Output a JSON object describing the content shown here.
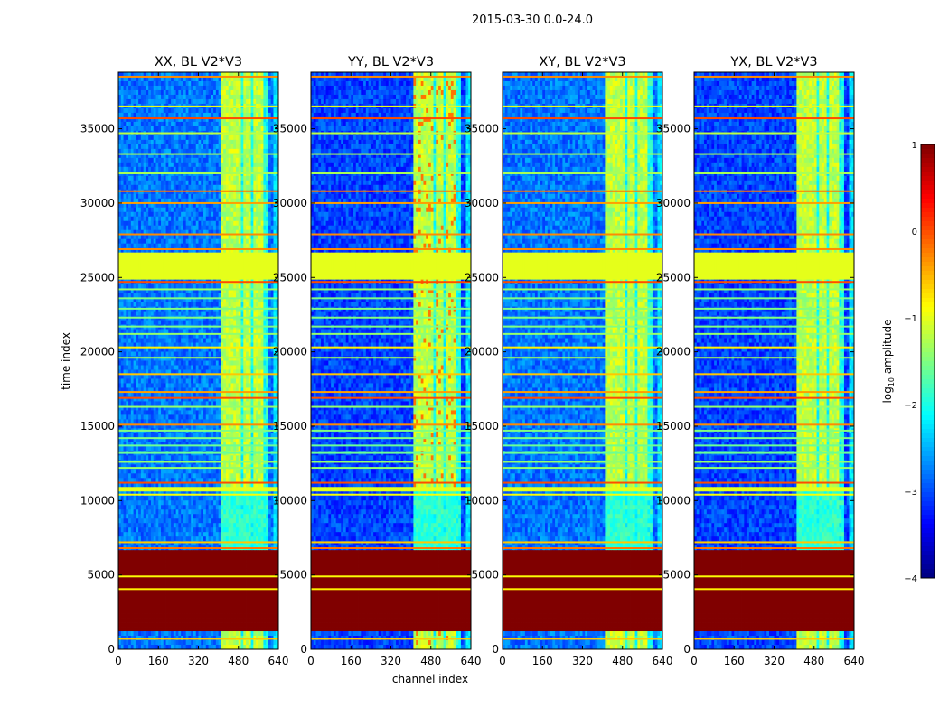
{
  "chart_data": {
    "type": "heatmap",
    "title": "2015-03-30 0.0-24.0",
    "xlabel": "channel index",
    "ylabel": "time index",
    "xlim": [
      0,
      640
    ],
    "ylim": [
      0,
      38800
    ],
    "xticks": [
      0,
      160,
      320,
      480,
      640
    ],
    "yticks": [
      0,
      5000,
      10000,
      15000,
      20000,
      25000,
      30000,
      35000
    ],
    "panels": [
      {
        "title": "XX, BL V2*V3",
        "polarization": "XX",
        "baseline": "V2*V3"
      },
      {
        "title": "YY, BL V2*V3",
        "polarization": "YY",
        "baseline": "V2*V3"
      },
      {
        "title": "XY, BL V2*V3",
        "polarization": "XY",
        "baseline": "V2*V3"
      },
      {
        "title": "YX, BL V2*V3",
        "polarization": "YX",
        "baseline": "V2*V3"
      }
    ],
    "colorbar": {
      "label_main": "log",
      "label_sub": "10",
      "label_rest": " amplitude",
      "range": [
        -4,
        1
      ],
      "ticks": [
        1,
        0,
        -1,
        -2,
        -3,
        -4
      ],
      "tick_labels": [
        "1",
        "0",
        "−1",
        "−2",
        "−3",
        "−4"
      ],
      "colormap": "jet"
    },
    "features": {
      "noise_floor_log_amp": -2.8,
      "strong_channel_band": [
        410,
        600
      ],
      "saturated_block_time": [
        1200,
        6700
      ],
      "saturated_block_log_amp": 1.0,
      "flagged_block_time": [
        24800,
        26700
      ],
      "flagged_block_log_amp": -1.0,
      "flagged_block_2_time": [
        10500,
        11000
      ],
      "flagged_block_2_log_amp": -1.0
    }
  }
}
